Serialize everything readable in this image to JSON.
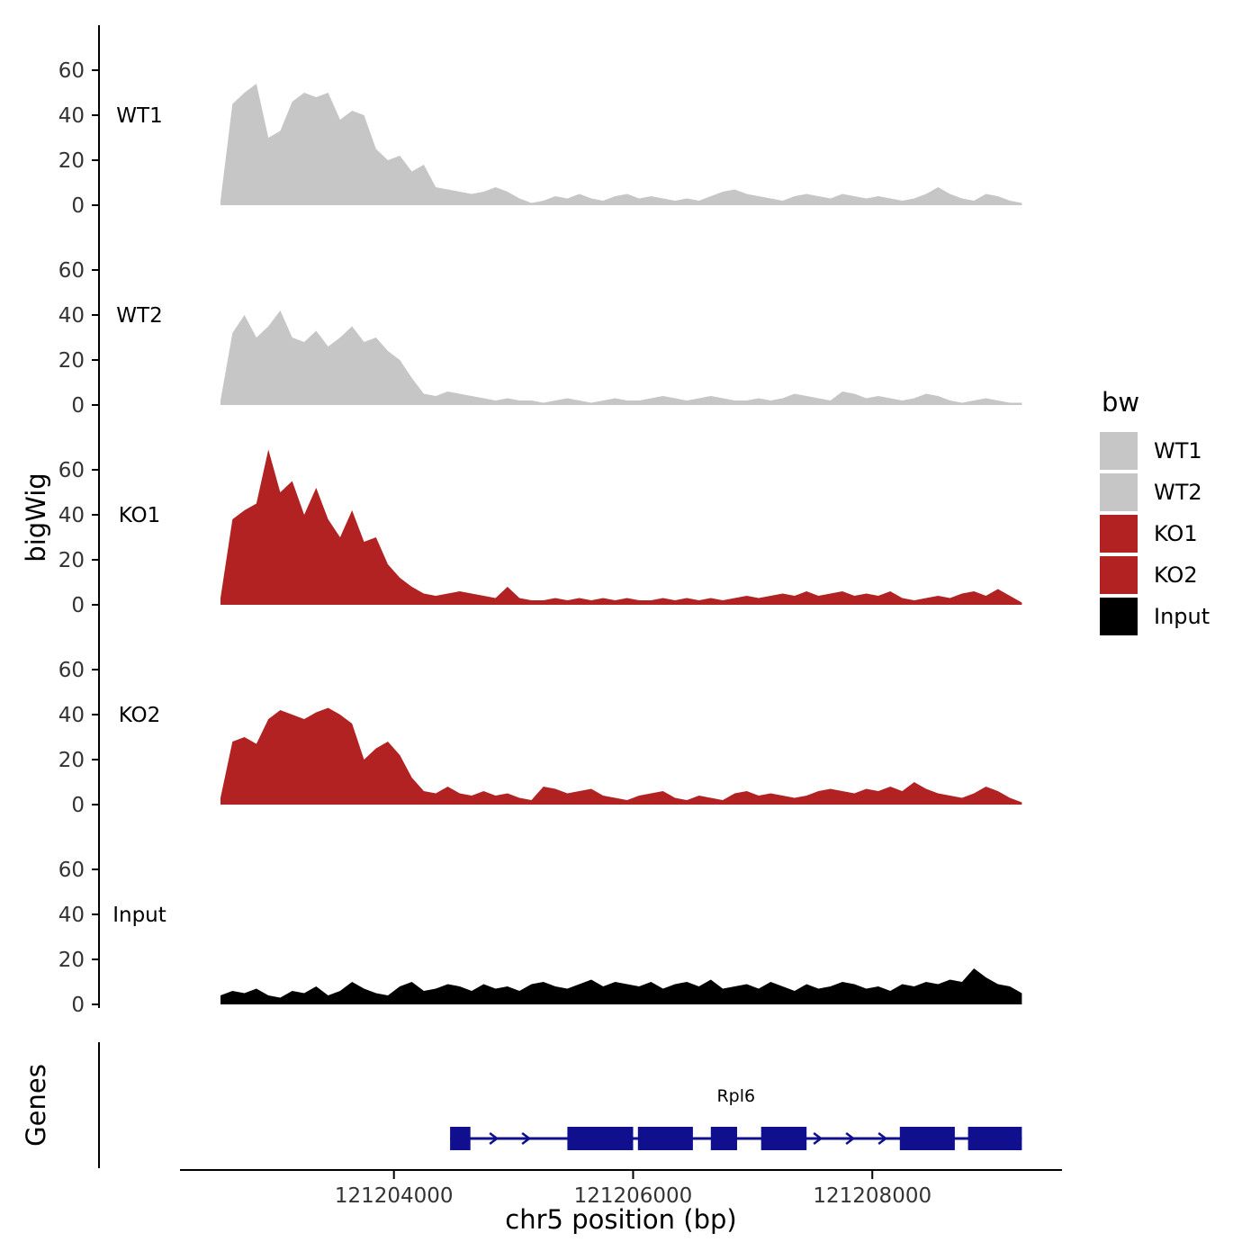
{
  "labels": {
    "y_axis_bigwig": "bigWig",
    "y_axis_genes": "Genes",
    "x_axis": "chr5 position (bp)"
  },
  "legend": {
    "title": "bw",
    "items": [
      {
        "label": "WT1",
        "color": "#c6c6c6"
      },
      {
        "label": "WT2",
        "color": "#c6c6c6"
      },
      {
        "label": "KO1",
        "color": "#b22222"
      },
      {
        "label": "KO2",
        "color": "#b22222"
      },
      {
        "label": "Input",
        "color": "#000000"
      }
    ]
  },
  "chart_data": {
    "type": "area",
    "title": "",
    "xlabel": "chr5 position (bp)",
    "ylabel": "bigWig",
    "x_start": 121202550,
    "x_step": 100,
    "x_range": [
      121202550,
      121209300
    ],
    "x_ticks": [
      121204000,
      121206000,
      121208000
    ],
    "y_ticks": [
      0,
      20,
      40,
      60
    ],
    "ylim": [
      0,
      70
    ],
    "grid": "off",
    "legend_position": "right",
    "tracks": [
      {
        "name": "WT1",
        "color": "#c6c6c6",
        "values": [
          2,
          45,
          50,
          54,
          30,
          33,
          46,
          50,
          48,
          50,
          38,
          42,
          40,
          25,
          20,
          22,
          15,
          18,
          8,
          7,
          6,
          5,
          6,
          8,
          6,
          3,
          1,
          2,
          4,
          3,
          5,
          3,
          2,
          4,
          5,
          3,
          4,
          3,
          2,
          3,
          2,
          4,
          6,
          7,
          5,
          4,
          3,
          2,
          4,
          5,
          4,
          3,
          5,
          4,
          3,
          4,
          3,
          2,
          3,
          5,
          8,
          5,
          3,
          2,
          5,
          4,
          2,
          1
        ]
      },
      {
        "name": "WT2",
        "color": "#c6c6c6",
        "values": [
          2,
          32,
          40,
          30,
          35,
          42,
          30,
          28,
          33,
          26,
          30,
          35,
          28,
          30,
          24,
          20,
          12,
          5,
          4,
          6,
          5,
          4,
          3,
          2,
          3,
          2,
          2,
          1,
          2,
          3,
          2,
          1,
          2,
          3,
          2,
          2,
          3,
          4,
          3,
          2,
          3,
          4,
          3,
          2,
          2,
          3,
          2,
          3,
          5,
          4,
          3,
          2,
          6,
          5,
          3,
          4,
          3,
          2,
          3,
          5,
          4,
          2,
          1,
          2,
          3,
          2,
          1,
          1
        ]
      },
      {
        "name": "KO1",
        "color": "#b22222",
        "values": [
          3,
          38,
          42,
          45,
          69,
          50,
          55,
          40,
          52,
          38,
          30,
          42,
          28,
          30,
          18,
          12,
          8,
          5,
          4,
          5,
          6,
          5,
          4,
          3,
          8,
          3,
          2,
          2,
          3,
          2,
          3,
          2,
          3,
          2,
          3,
          2,
          2,
          3,
          2,
          3,
          2,
          3,
          2,
          3,
          4,
          3,
          4,
          5,
          4,
          6,
          4,
          5,
          6,
          4,
          5,
          4,
          6,
          3,
          2,
          3,
          4,
          3,
          5,
          6,
          4,
          7,
          4,
          1
        ]
      },
      {
        "name": "KO2",
        "color": "#b22222",
        "values": [
          3,
          28,
          30,
          27,
          38,
          42,
          40,
          38,
          41,
          43,
          40,
          36,
          20,
          25,
          28,
          22,
          12,
          6,
          5,
          8,
          5,
          4,
          6,
          4,
          5,
          3,
          2,
          8,
          7,
          5,
          6,
          7,
          4,
          3,
          2,
          4,
          5,
          6,
          3,
          2,
          4,
          3,
          2,
          5,
          6,
          4,
          5,
          4,
          3,
          4,
          6,
          7,
          6,
          5,
          7,
          6,
          8,
          6,
          10,
          7,
          5,
          4,
          3,
          5,
          8,
          6,
          3,
          1
        ]
      },
      {
        "name": "Input",
        "color": "#000000",
        "values": [
          4,
          6,
          5,
          7,
          4,
          3,
          6,
          5,
          8,
          4,
          6,
          10,
          7,
          5,
          4,
          8,
          10,
          6,
          7,
          9,
          8,
          6,
          9,
          7,
          8,
          6,
          9,
          10,
          8,
          7,
          9,
          11,
          8,
          10,
          9,
          8,
          10,
          7,
          9,
          10,
          8,
          11,
          7,
          8,
          9,
          7,
          10,
          8,
          6,
          9,
          7,
          8,
          10,
          9,
          7,
          8,
          6,
          9,
          8,
          10,
          9,
          11,
          10,
          16,
          12,
          9,
          8,
          5
        ]
      }
    ],
    "genes_track": {
      "label": "Genes",
      "gene": {
        "name": "Rpl6",
        "strand": "+",
        "color": "#10108e",
        "start": 121204470,
        "end": 121209250,
        "exons": [
          [
            121204470,
            121204640
          ],
          [
            121205450,
            121206000
          ],
          [
            121206040,
            121206500
          ],
          [
            121206650,
            121206870
          ],
          [
            121207070,
            121207450
          ],
          [
            121208230,
            121208690
          ],
          [
            121208800,
            121209250
          ]
        ]
      }
    }
  }
}
